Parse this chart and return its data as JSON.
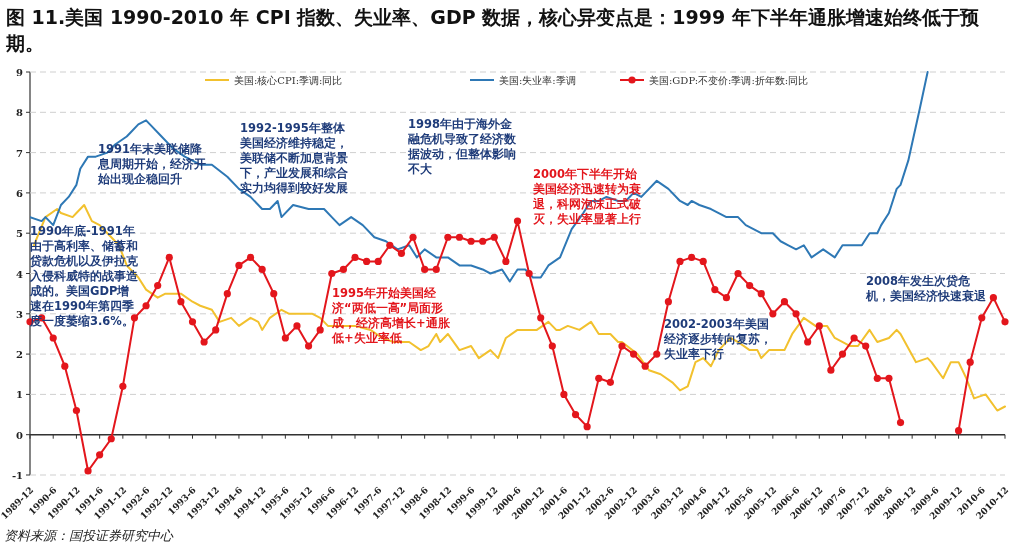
{
  "chart_data": {
    "type": "line",
    "title": "图 11.美国 1990-2010 年 CPI 指数、失业率、GDP 数据，核心异变点是：1999 年下半年通胀增速始终低于预期。",
    "xlim": [
      "1989-12",
      "2010-12"
    ],
    "xticks": [
      "1989-12",
      {
        "value": "1990-06",
        "label": "1990-6"
      },
      "1990-12",
      {
        "value": "1991-06",
        "label": "1991-6"
      },
      "1991-12",
      {
        "value": "1992-06",
        "label": "1992-6"
      },
      "1992-12",
      {
        "value": "1993-06",
        "label": "1993-6"
      },
      "1993-12",
      {
        "value": "1994-06",
        "label": "1994-6"
      },
      "1994-12",
      {
        "value": "1995-06",
        "label": "1995-6"
      },
      "1995-12",
      {
        "value": "1996-06",
        "label": "1996-6"
      },
      "1996-12",
      {
        "value": "1997-06",
        "label": "1997-6"
      },
      "1997-12",
      {
        "value": "1998-06",
        "label": "1998-6"
      },
      "1998-12",
      {
        "value": "1999-06",
        "label": "1999-6"
      },
      "1999-12",
      {
        "value": "2000-06",
        "label": "2000-6"
      },
      "2000-12",
      {
        "value": "2001-06",
        "label": "2001-6"
      },
      "2001-12",
      {
        "value": "2002-06",
        "label": "2002-6"
      },
      "2002-12",
      {
        "value": "2003-06",
        "label": "2003-6"
      },
      "2003-12",
      {
        "value": "2004-06",
        "label": "2004-6"
      },
      "2004-12",
      {
        "value": "2005-06",
        "label": "2005-6"
      },
      "2005-12",
      {
        "value": "2006-06",
        "label": "2006-6"
      },
      "2006-12",
      {
        "value": "2007-06",
        "label": "2007-6"
      },
      "2007-12",
      {
        "value": "2008-06",
        "label": "2008-6"
      },
      "2008-12",
      {
        "value": "2009-06",
        "label": "2009-6"
      },
      "2009-12",
      {
        "value": "2010-06",
        "label": "2010-6"
      },
      "2010-12"
    ],
    "ylim": [
      -1,
      9
    ],
    "yticks": [
      -1,
      0,
      1,
      2,
      3,
      4,
      5,
      6,
      7,
      8,
      9
    ],
    "grid": "y",
    "legend": "top",
    "line_style": "solid",
    "series": [
      {
        "name": "美国:核心CPI:季调:同比",
        "color": "#f2c12e",
        "marker": "none",
        "x": [
          "1990-01",
          "1990-04",
          "1990-07",
          "1990-08",
          "1990-11",
          "1990-12",
          "1991-02",
          "1991-04",
          "1991-06",
          "1991-09",
          "1991-11",
          "1992-01",
          "1992-04",
          "1992-06",
          "1992-09",
          "1992-11",
          "1993-01",
          "1993-03",
          "1993-06",
          "1993-08",
          "1993-11",
          "1994-01",
          "1994-04",
          "1994-06",
          "1994-09",
          "1994-11",
          "1994-12",
          "1995-02",
          "1995-05",
          "1995-07",
          "1995-10",
          "1996-01",
          "1996-03",
          "1996-05",
          "1996-08",
          "1996-12",
          "1997-04",
          "1997-07",
          "1997-10",
          "1997-11",
          "1998-02",
          "1998-05",
          "1998-07",
          "1998-09",
          "1998-10",
          "1998-12",
          "1999-03",
          "1999-06",
          "1999-08",
          "1999-11",
          "2000-01",
          "2000-03",
          "2000-06",
          "2000-08",
          "2000-11",
          "2001-02",
          "2001-04",
          "2001-05",
          "2001-07",
          "2001-10",
          "2002-01",
          "2002-03",
          "2002-06",
          "2002-08",
          "2002-09",
          "2003-01",
          "2003-04",
          "2003-07",
          "2003-10",
          "2003-12",
          "2004-02",
          "2004-04",
          "2004-06",
          "2004-08",
          "2004-10",
          "2005-01",
          "2005-03",
          "2005-06",
          "2005-08",
          "2005-09",
          "2005-11",
          "2006-03",
          "2006-05",
          "2006-08",
          "2006-11",
          "2007-02",
          "2007-04",
          "2007-08",
          "2007-10",
          "2008-01",
          "2008-03",
          "2008-06",
          "2008-08",
          "2008-09",
          "2009-01",
          "2009-04",
          "2009-05",
          "2009-08",
          "2009-10",
          "2009-12",
          "2010-02",
          "2010-04",
          "2010-07",
          "2010-10",
          "2010-12"
        ],
        "values": [
          4.7,
          5.4,
          5.6,
          5.5,
          5.4,
          5.5,
          5.7,
          5.3,
          5.2,
          4.9,
          4.7,
          4.2,
          3.9,
          3.6,
          3.4,
          3.5,
          3.5,
          3.5,
          3.3,
          3.2,
          3.1,
          2.8,
          2.9,
          2.7,
          2.9,
          2.8,
          2.6,
          2.9,
          3.1,
          3.0,
          3.0,
          3.0,
          2.9,
          2.7,
          2.7,
          2.7,
          2.6,
          2.4,
          2.3,
          2.3,
          2.3,
          2.1,
          2.2,
          2.5,
          2.3,
          2.5,
          2.1,
          2.2,
          1.9,
          2.1,
          1.9,
          2.4,
          2.6,
          2.6,
          2.6,
          2.8,
          2.6,
          2.6,
          2.7,
          2.6,
          2.8,
          2.5,
          2.5,
          2.3,
          2.3,
          2.0,
          1.6,
          1.5,
          1.3,
          1.1,
          1.2,
          1.8,
          1.9,
          1.7,
          2.1,
          2.4,
          2.3,
          2.1,
          2.1,
          1.9,
          2.1,
          2.1,
          2.5,
          2.9,
          2.7,
          2.7,
          2.4,
          2.2,
          2.2,
          2.6,
          2.3,
          2.4,
          2.6,
          2.5,
          1.8,
          1.9,
          1.8,
          1.4,
          1.8,
          1.8,
          1.4,
          0.9,
          1.0,
          0.6,
          0.7
        ]
      },
      {
        "name": "美国:失业率:季调",
        "color": "#2e78b5",
        "marker": "none",
        "x": [
          "1989-12",
          "1990-03",
          "1990-04",
          "1990-06",
          "1990-08",
          "1990-10",
          "1990-12",
          "1991-01",
          "1991-03",
          "1991-05",
          "1991-08",
          "1991-10",
          "1992-01",
          "1992-02",
          "1992-04",
          "1992-06",
          "1992-07",
          "1992-10",
          "1993-01",
          "1993-04",
          "1993-08",
          "1993-11",
          "1994-03",
          "1994-06",
          "1994-09",
          "1994-12",
          "1995-02",
          "1995-04",
          "1995-05",
          "1995-08",
          "1995-12",
          "1996-04",
          "1996-06",
          "1996-08",
          "1996-11",
          "1997-02",
          "1997-05",
          "1997-08",
          "1997-11",
          "1998-02",
          "1998-04",
          "1998-06",
          "1998-09",
          "1998-12",
          "1999-03",
          "1999-06",
          "1999-09",
          "1999-11",
          "2000-02",
          "2000-04",
          "2000-06",
          "2000-08",
          "2000-10",
          "2000-12",
          "2001-02",
          "2001-05",
          "2001-08",
          "2001-11",
          "2002-01",
          "2002-03",
          "2002-05",
          "2002-08",
          "2002-10",
          "2002-12",
          "2003-02",
          "2003-03",
          "2003-06",
          "2003-09",
          "2003-12",
          "2004-02",
          "2004-03",
          "2004-05",
          "2004-08",
          "2004-10",
          "2004-12",
          "2005-03",
          "2005-05",
          "2005-09",
          "2005-10",
          "2005-12",
          "2006-02",
          "2006-04",
          "2006-06",
          "2006-08",
          "2006-10",
          "2007-01",
          "2007-04",
          "2007-06",
          "2007-09",
          "2007-11",
          "2008-01",
          "2008-03",
          "2008-04",
          "2008-06",
          "2008-08",
          "2008-09",
          "2008-11",
          "2009-02",
          "2009-04"
        ],
        "values": [
          5.4,
          5.3,
          5.4,
          5.2,
          5.7,
          5.9,
          6.2,
          6.6,
          6.9,
          6.9,
          7.0,
          7.2,
          7.4,
          7.5,
          7.7,
          7.8,
          7.7,
          7.4,
          7.1,
          6.9,
          6.7,
          6.7,
          6.4,
          6.1,
          5.9,
          5.6,
          5.6,
          5.8,
          5.4,
          5.7,
          5.6,
          5.6,
          5.4,
          5.2,
          5.4,
          5.2,
          4.9,
          4.8,
          4.6,
          4.7,
          4.4,
          4.6,
          4.4,
          4.4,
          4.2,
          4.2,
          4.1,
          4.0,
          4.1,
          3.8,
          4.1,
          4.1,
          3.9,
          3.9,
          4.2,
          4.4,
          5.1,
          5.5,
          5.8,
          5.8,
          5.9,
          5.8,
          5.8,
          6.0,
          5.9,
          6.0,
          6.3,
          6.1,
          5.8,
          5.7,
          5.8,
          5.7,
          5.6,
          5.5,
          5.4,
          5.4,
          5.2,
          5.0,
          5.0,
          5.0,
          4.8,
          4.7,
          4.6,
          4.7,
          4.4,
          4.6,
          4.4,
          4.7,
          4.7,
          4.7,
          5.0,
          5.0,
          5.2,
          5.5,
          6.1,
          6.2,
          6.8,
          8.1,
          9.0
        ]
      },
      {
        "name": "美国:GDP:不变价:季调:折年数:同比",
        "color": "#e3161c",
        "marker": "circle",
        "x": [
          "1989-12",
          "1990-03",
          "1990-06",
          "1990-09",
          "1990-12",
          "1991-03",
          "1991-06",
          "1991-09",
          "1991-12",
          "1992-03",
          "1992-06",
          "1992-09",
          "1992-12",
          "1993-03",
          "1993-06",
          "1993-09",
          "1993-12",
          "1994-03",
          "1994-06",
          "1994-09",
          "1994-12",
          "1995-03",
          "1995-06",
          "1995-09",
          "1995-12",
          "1996-03",
          "1996-06",
          "1996-09",
          "1996-12",
          "1997-03",
          "1997-06",
          "1997-09",
          "1997-12",
          "1998-03",
          "1998-06",
          "1998-09",
          "1998-12",
          "1999-03",
          "1999-06",
          "1999-09",
          "1999-12",
          "2000-03",
          "2000-06",
          "2000-09",
          "2000-12",
          "2001-03",
          "2001-06",
          "2001-09",
          "2001-12",
          "2002-03",
          "2002-06",
          "2002-09",
          "2002-12",
          "2003-03",
          "2003-06",
          "2003-09",
          "2003-12",
          "2004-03",
          "2004-06",
          "2004-09",
          "2004-12",
          "2005-03",
          "2005-06",
          "2005-09",
          "2005-12",
          "2006-03",
          "2006-06",
          "2006-09",
          "2006-12",
          "2007-03",
          "2007-06",
          "2007-09",
          "2007-12",
          "2008-03",
          "2008-06",
          "2008-09",
          "2008-12",
          "2009-03",
          "2009-06",
          "2009-09",
          "2009-12",
          "2010-03",
          "2010-06",
          "2010-09",
          "2010-12"
        ],
        "values": [
          2.8,
          2.9,
          2.4,
          1.7,
          0.6,
          -0.9,
          -0.5,
          -0.1,
          1.2,
          2.9,
          3.2,
          3.7,
          4.4,
          3.3,
          2.8,
          2.3,
          2.6,
          3.5,
          4.2,
          4.4,
          4.1,
          3.5,
          2.4,
          2.7,
          2.2,
          2.6,
          4.0,
          4.1,
          4.4,
          4.3,
          4.3,
          4.7,
          4.5,
          4.9,
          4.1,
          4.1,
          4.9,
          4.9,
          4.8,
          4.8,
          4.9,
          4.3,
          5.3,
          4.0,
          2.9,
          2.2,
          1.0,
          0.5,
          0.2,
          1.4,
          1.3,
          2.2,
          2.0,
          1.7,
          2.0,
          3.3,
          4.3,
          4.4,
          4.3,
          3.6,
          3.4,
          4.0,
          3.7,
          3.5,
          3.0,
          3.3,
          3.0,
          2.3,
          2.7,
          1.6,
          2.0,
          2.4,
          2.2,
          1.4,
          1.4,
          0.3,
          null,
          null,
          null,
          null,
          0.1,
          1.8,
          2.9,
          3.4,
          2.8
        ]
      }
    ],
    "annotations": [
      "1991年末美联储降息周期开始，经济开始出现企稳回升",
      "1992-1995年整体美国经济维持稳定，美联储不断加息背景下，产业发展和综合实力均得到较好发展",
      "1998年由于海外金融危机导致了经济数据波动，但整体影响不大",
      "1990年底-1991年由于高利率、储蓄和贷款危机以及伊拉克入侵科威特的战事造成的。美国GDP增速在1990年第四季度一度萎缩3.6%。",
      "1995年开始美国经济“两低一高”局面形成，经济高增长+通胀低+失业率低",
      "2000年下半年开始美国经济迅速转为衰退，科网泡沫正式破灭，失业率显著上行",
      "2002-2003年美国经济逐步转向复苏，失业率下行",
      "2008年发生次贷危机，美国经济快速衰退",
      "资料来源：国投证券研究中心"
    ]
  }
}
